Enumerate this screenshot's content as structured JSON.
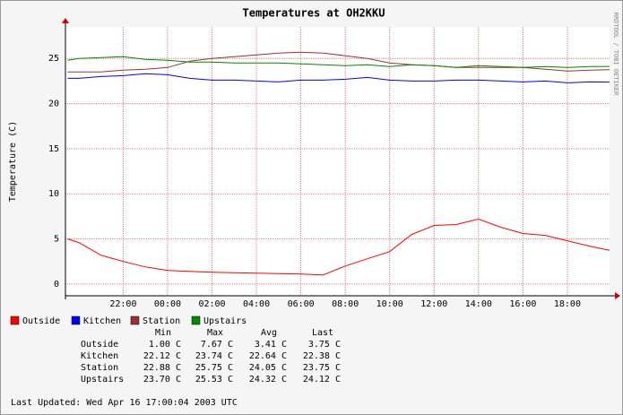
{
  "chart_data": {
    "type": "line",
    "title": "Temperatures at OH2KKU",
    "ylabel": "Temperature (C)",
    "side_note": "RRDTOOL / TOBI OETIKER",
    "x": [
      19.5,
      20,
      21,
      22,
      23,
      24,
      25,
      26,
      27,
      28,
      29,
      30,
      31,
      32,
      33,
      34,
      35,
      36,
      37,
      38,
      39,
      40,
      41,
      42,
      43,
      43.9
    ],
    "xlim": [
      19.4,
      43.9
    ],
    "xticks": [
      {
        "value": 22,
        "label": "22:00"
      },
      {
        "value": 24,
        "label": "00:00"
      },
      {
        "value": 26,
        "label": "02:00"
      },
      {
        "value": 28,
        "label": "04:00"
      },
      {
        "value": 30,
        "label": "06:00"
      },
      {
        "value": 32,
        "label": "08:00"
      },
      {
        "value": 34,
        "label": "10:00"
      },
      {
        "value": 36,
        "label": "12:00"
      },
      {
        "value": 38,
        "label": "14:00"
      },
      {
        "value": 40,
        "label": "16:00"
      },
      {
        "value": 42,
        "label": "18:00"
      }
    ],
    "ylim": [
      -1.3,
      28.5
    ],
    "yticks": [
      0,
      5,
      10,
      15,
      20,
      25
    ],
    "grid": true,
    "series": [
      {
        "name": "Outside",
        "color": "#ff0000",
        "values": [
          5.0,
          4.6,
          3.2,
          2.5,
          1.9,
          1.5,
          1.4,
          1.3,
          1.25,
          1.2,
          1.15,
          1.1,
          1.0,
          2.0,
          2.8,
          3.6,
          5.5,
          6.5,
          6.6,
          7.2,
          6.3,
          5.6,
          5.4,
          4.8,
          4.2,
          3.75
        ]
      },
      {
        "name": "Kitchen",
        "color": "#0000ff",
        "values": [
          22.8,
          22.8,
          23.0,
          23.1,
          23.3,
          23.2,
          22.8,
          22.6,
          22.6,
          22.5,
          22.4,
          22.6,
          22.6,
          22.7,
          22.9,
          22.6,
          22.5,
          22.5,
          22.6,
          22.6,
          22.5,
          22.4,
          22.5,
          22.3,
          22.4,
          22.38
        ]
      },
      {
        "name": "Station",
        "color": "#993333",
        "values": [
          23.5,
          23.5,
          23.5,
          23.7,
          23.8,
          24.0,
          24.7,
          25.0,
          25.2,
          25.4,
          25.6,
          25.7,
          25.6,
          25.3,
          25.0,
          24.5,
          24.3,
          24.2,
          24.0,
          24.0,
          24.0,
          24.0,
          23.8,
          23.6,
          23.7,
          23.75
        ]
      },
      {
        "name": "Upstairs",
        "color": "#008800",
        "values": [
          24.8,
          25.0,
          25.1,
          25.2,
          24.9,
          24.8,
          24.6,
          24.6,
          24.5,
          24.5,
          24.5,
          24.4,
          24.3,
          24.2,
          24.3,
          24.1,
          24.3,
          24.2,
          24.0,
          24.2,
          24.1,
          24.0,
          24.1,
          24.0,
          24.1,
          24.12
        ]
      }
    ],
    "stats": {
      "columns": [
        "Min",
        "Max",
        "Avg",
        "Last"
      ],
      "rows": [
        {
          "name": "Outside",
          "cells": [
            "1.00 C",
            "7.67 C",
            "3.41 C",
            "3.75 C"
          ]
        },
        {
          "name": "Kitchen",
          "cells": [
            "22.12 C",
            "23.74 C",
            "22.64 C",
            "22.38 C"
          ]
        },
        {
          "name": "Station",
          "cells": [
            "22.88 C",
            "25.75 C",
            "24.05 C",
            "23.75 C"
          ]
        },
        {
          "name": "Upstairs",
          "cells": [
            "23.70 C",
            "25.53 C",
            "24.32 C",
            "24.12 C"
          ]
        }
      ]
    },
    "footer": "Last Updated: Wed Apr 16 17:00:04 2003 UTC"
  }
}
